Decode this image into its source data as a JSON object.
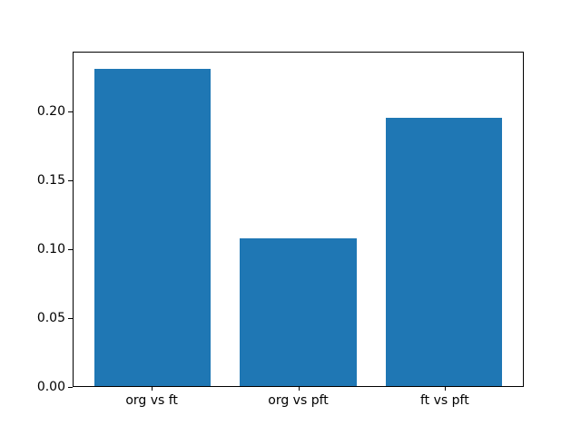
{
  "figure": {
    "background": "#ffffff",
    "frame_color": "#000000"
  },
  "chart_data": {
    "type": "bar",
    "title": "",
    "xlabel": "",
    "ylabel": "",
    "categories": [
      "org vs ft",
      "org vs pft",
      "ft vs pft"
    ],
    "values": [
      0.232,
      0.108,
      0.196
    ],
    "bar_color": "#1f77b4",
    "bar_width_fraction": 0.8,
    "xlim": [
      -0.54,
      2.54
    ],
    "ylim": [
      0,
      0.2436
    ],
    "yticks": [
      0.0,
      0.05,
      0.1,
      0.15,
      0.2
    ],
    "ytick_labels": [
      "0.00",
      "0.05",
      "0.10",
      "0.15",
      "0.20"
    ],
    "grid": false,
    "legend": null
  }
}
